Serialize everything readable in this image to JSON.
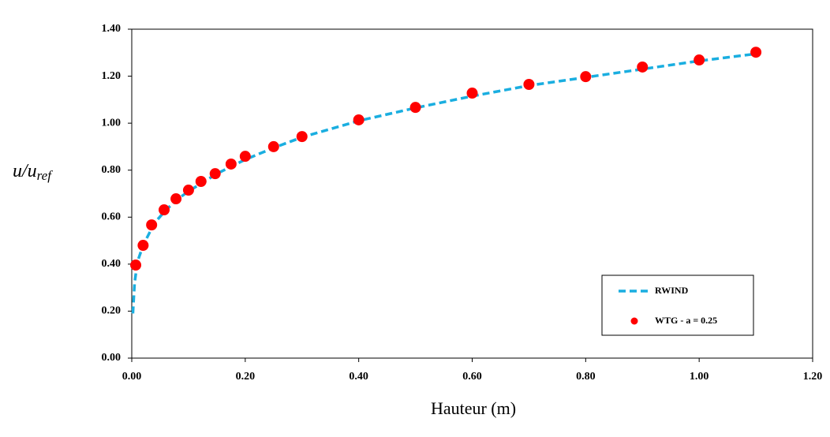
{
  "chart_data": {
    "type": "line_scatter",
    "x_label": "Hauteur (m)",
    "y_label": {
      "main": "u/u",
      "sub": "ref"
    },
    "xlim": [
      0,
      1.2
    ],
    "ylim": [
      0,
      1.4
    ],
    "xticks": [
      {
        "value": 0,
        "label": "0.00"
      },
      {
        "value": 0.2,
        "label": "0.20"
      },
      {
        "value": 0.4,
        "label": "0.40"
      },
      {
        "value": 0.6,
        "label": "0.60"
      },
      {
        "value": 0.8,
        "label": "0.80"
      },
      {
        "value": 1.0,
        "label": "1.00"
      },
      {
        "value": 1.2,
        "label": "1.20"
      }
    ],
    "yticks": [
      {
        "value": 0,
        "label": "0.00"
      },
      {
        "value": 0.2,
        "label": "0.20"
      },
      {
        "value": 0.4,
        "label": "0.40"
      },
      {
        "value": 0.6,
        "label": "0.60"
      },
      {
        "value": 0.8,
        "label": "0.80"
      },
      {
        "value": 1.0,
        "label": "1.00"
      },
      {
        "value": 1.2,
        "label": "1.20"
      },
      {
        "value": 1.4,
        "label": "1.40"
      }
    ],
    "legend": "lower right",
    "series": [
      {
        "name": "RWIND",
        "kind": "line",
        "color": "#1aaee0",
        "x": [
          0.002,
          0.005,
          0.01,
          0.02,
          0.04,
          0.06,
          0.08,
          0.1,
          0.15,
          0.2,
          0.25,
          0.3,
          0.4,
          0.5,
          0.6,
          0.7,
          0.8,
          0.9,
          1.0,
          1.1
        ],
        "values": [
          0.19,
          0.32,
          0.41,
          0.48,
          0.575,
          0.63,
          0.675,
          0.71,
          0.785,
          0.845,
          0.895,
          0.94,
          1.01,
          1.065,
          1.115,
          1.16,
          1.195,
          1.23,
          1.265,
          1.295
        ]
      },
      {
        "name": "WTG - a = 0.25",
        "kind": "scatter",
        "color": "#ff0000",
        "x": [
          0.007,
          0.02,
          0.035,
          0.057,
          0.078,
          0.1,
          0.122,
          0.147,
          0.175,
          0.2,
          0.25,
          0.3,
          0.4,
          0.5,
          0.6,
          0.7,
          0.8,
          0.9,
          1.0,
          1.1
        ],
        "values": [
          0.396,
          0.48,
          0.567,
          0.631,
          0.678,
          0.715,
          0.752,
          0.785,
          0.826,
          0.859,
          0.9,
          0.943,
          1.014,
          1.067,
          1.128,
          1.165,
          1.198,
          1.239,
          1.269,
          1.302
        ]
      }
    ]
  }
}
